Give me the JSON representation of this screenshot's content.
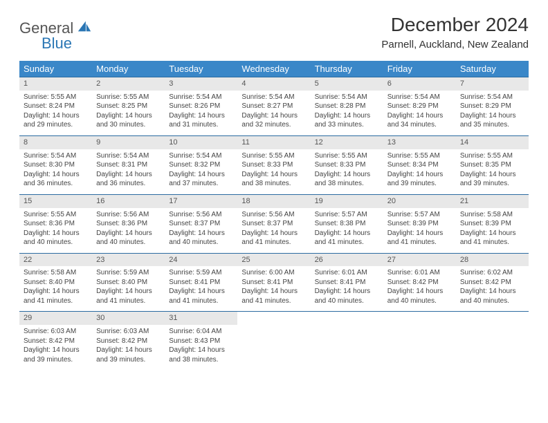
{
  "logo": {
    "word1": "General",
    "word2": "Blue"
  },
  "title": "December 2024",
  "location": "Parnell, Auckland, New Zealand",
  "colors": {
    "header_bg": "#3a87c8",
    "header_fg": "#ffffff",
    "daynum_bg": "#e8e8e8",
    "border": "#2a6aa0",
    "logo_blue": "#2a76b4"
  },
  "weekdays": [
    "Sunday",
    "Monday",
    "Tuesday",
    "Wednesday",
    "Thursday",
    "Friday",
    "Saturday"
  ],
  "weeks": [
    [
      {
        "n": "1",
        "sr": "Sunrise: 5:55 AM",
        "ss": "Sunset: 8:24 PM",
        "d1": "Daylight: 14 hours",
        "d2": "and 29 minutes."
      },
      {
        "n": "2",
        "sr": "Sunrise: 5:55 AM",
        "ss": "Sunset: 8:25 PM",
        "d1": "Daylight: 14 hours",
        "d2": "and 30 minutes."
      },
      {
        "n": "3",
        "sr": "Sunrise: 5:54 AM",
        "ss": "Sunset: 8:26 PM",
        "d1": "Daylight: 14 hours",
        "d2": "and 31 minutes."
      },
      {
        "n": "4",
        "sr": "Sunrise: 5:54 AM",
        "ss": "Sunset: 8:27 PM",
        "d1": "Daylight: 14 hours",
        "d2": "and 32 minutes."
      },
      {
        "n": "5",
        "sr": "Sunrise: 5:54 AM",
        "ss": "Sunset: 8:28 PM",
        "d1": "Daylight: 14 hours",
        "d2": "and 33 minutes."
      },
      {
        "n": "6",
        "sr": "Sunrise: 5:54 AM",
        "ss": "Sunset: 8:29 PM",
        "d1": "Daylight: 14 hours",
        "d2": "and 34 minutes."
      },
      {
        "n": "7",
        "sr": "Sunrise: 5:54 AM",
        "ss": "Sunset: 8:29 PM",
        "d1": "Daylight: 14 hours",
        "d2": "and 35 minutes."
      }
    ],
    [
      {
        "n": "8",
        "sr": "Sunrise: 5:54 AM",
        "ss": "Sunset: 8:30 PM",
        "d1": "Daylight: 14 hours",
        "d2": "and 36 minutes."
      },
      {
        "n": "9",
        "sr": "Sunrise: 5:54 AM",
        "ss": "Sunset: 8:31 PM",
        "d1": "Daylight: 14 hours",
        "d2": "and 36 minutes."
      },
      {
        "n": "10",
        "sr": "Sunrise: 5:54 AM",
        "ss": "Sunset: 8:32 PM",
        "d1": "Daylight: 14 hours",
        "d2": "and 37 minutes."
      },
      {
        "n": "11",
        "sr": "Sunrise: 5:55 AM",
        "ss": "Sunset: 8:33 PM",
        "d1": "Daylight: 14 hours",
        "d2": "and 38 minutes."
      },
      {
        "n": "12",
        "sr": "Sunrise: 5:55 AM",
        "ss": "Sunset: 8:33 PM",
        "d1": "Daylight: 14 hours",
        "d2": "and 38 minutes."
      },
      {
        "n": "13",
        "sr": "Sunrise: 5:55 AM",
        "ss": "Sunset: 8:34 PM",
        "d1": "Daylight: 14 hours",
        "d2": "and 39 minutes."
      },
      {
        "n": "14",
        "sr": "Sunrise: 5:55 AM",
        "ss": "Sunset: 8:35 PM",
        "d1": "Daylight: 14 hours",
        "d2": "and 39 minutes."
      }
    ],
    [
      {
        "n": "15",
        "sr": "Sunrise: 5:55 AM",
        "ss": "Sunset: 8:36 PM",
        "d1": "Daylight: 14 hours",
        "d2": "and 40 minutes."
      },
      {
        "n": "16",
        "sr": "Sunrise: 5:56 AM",
        "ss": "Sunset: 8:36 PM",
        "d1": "Daylight: 14 hours",
        "d2": "and 40 minutes."
      },
      {
        "n": "17",
        "sr": "Sunrise: 5:56 AM",
        "ss": "Sunset: 8:37 PM",
        "d1": "Daylight: 14 hours",
        "d2": "and 40 minutes."
      },
      {
        "n": "18",
        "sr": "Sunrise: 5:56 AM",
        "ss": "Sunset: 8:37 PM",
        "d1": "Daylight: 14 hours",
        "d2": "and 41 minutes."
      },
      {
        "n": "19",
        "sr": "Sunrise: 5:57 AM",
        "ss": "Sunset: 8:38 PM",
        "d1": "Daylight: 14 hours",
        "d2": "and 41 minutes."
      },
      {
        "n": "20",
        "sr": "Sunrise: 5:57 AM",
        "ss": "Sunset: 8:39 PM",
        "d1": "Daylight: 14 hours",
        "d2": "and 41 minutes."
      },
      {
        "n": "21",
        "sr": "Sunrise: 5:58 AM",
        "ss": "Sunset: 8:39 PM",
        "d1": "Daylight: 14 hours",
        "d2": "and 41 minutes."
      }
    ],
    [
      {
        "n": "22",
        "sr": "Sunrise: 5:58 AM",
        "ss": "Sunset: 8:40 PM",
        "d1": "Daylight: 14 hours",
        "d2": "and 41 minutes."
      },
      {
        "n": "23",
        "sr": "Sunrise: 5:59 AM",
        "ss": "Sunset: 8:40 PM",
        "d1": "Daylight: 14 hours",
        "d2": "and 41 minutes."
      },
      {
        "n": "24",
        "sr": "Sunrise: 5:59 AM",
        "ss": "Sunset: 8:41 PM",
        "d1": "Daylight: 14 hours",
        "d2": "and 41 minutes."
      },
      {
        "n": "25",
        "sr": "Sunrise: 6:00 AM",
        "ss": "Sunset: 8:41 PM",
        "d1": "Daylight: 14 hours",
        "d2": "and 41 minutes."
      },
      {
        "n": "26",
        "sr": "Sunrise: 6:01 AM",
        "ss": "Sunset: 8:41 PM",
        "d1": "Daylight: 14 hours",
        "d2": "and 40 minutes."
      },
      {
        "n": "27",
        "sr": "Sunrise: 6:01 AM",
        "ss": "Sunset: 8:42 PM",
        "d1": "Daylight: 14 hours",
        "d2": "and 40 minutes."
      },
      {
        "n": "28",
        "sr": "Sunrise: 6:02 AM",
        "ss": "Sunset: 8:42 PM",
        "d1": "Daylight: 14 hours",
        "d2": "and 40 minutes."
      }
    ],
    [
      {
        "n": "29",
        "sr": "Sunrise: 6:03 AM",
        "ss": "Sunset: 8:42 PM",
        "d1": "Daylight: 14 hours",
        "d2": "and 39 minutes."
      },
      {
        "n": "30",
        "sr": "Sunrise: 6:03 AM",
        "ss": "Sunset: 8:42 PM",
        "d1": "Daylight: 14 hours",
        "d2": "and 39 minutes."
      },
      {
        "n": "31",
        "sr": "Sunrise: 6:04 AM",
        "ss": "Sunset: 8:43 PM",
        "d1": "Daylight: 14 hours",
        "d2": "and 38 minutes."
      },
      null,
      null,
      null,
      null
    ]
  ]
}
